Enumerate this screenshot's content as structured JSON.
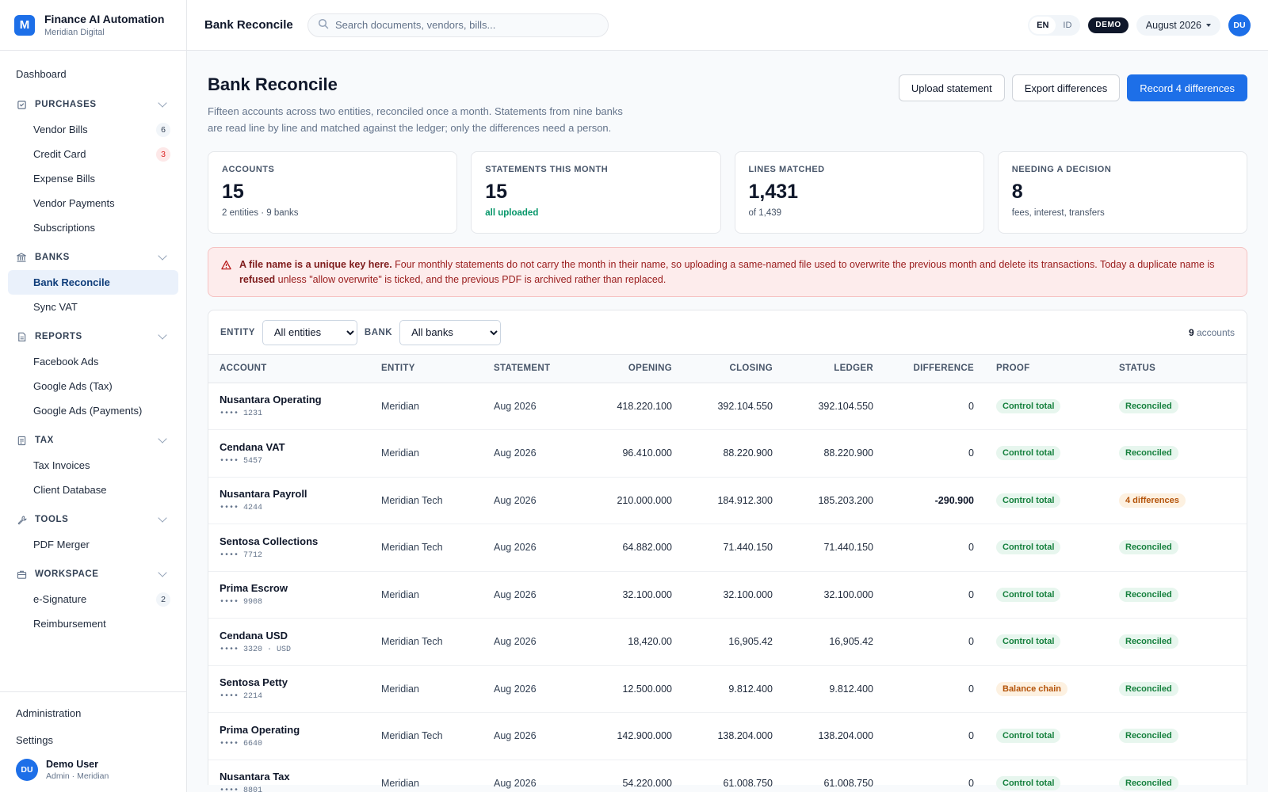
{
  "brand": {
    "title": "Finance AI Automation",
    "subtitle": "Meridian Digital",
    "logo_letter": "M"
  },
  "nav": {
    "dashboard": "Dashboard",
    "sections": [
      {
        "label": "PURCHASES",
        "icon": "cart-icon",
        "items": [
          {
            "label": "Vendor Bills",
            "count": "6",
            "count_color": "gray"
          },
          {
            "label": "Credit Card",
            "count": "3",
            "count_color": "red"
          },
          {
            "label": "Expense Bills"
          },
          {
            "label": "Vendor Payments"
          },
          {
            "label": "Subscriptions"
          }
        ]
      },
      {
        "label": "BANKS",
        "icon": "bank-icon",
        "items": [
          {
            "label": "Bank Reconcile",
            "active": true
          },
          {
            "label": "Sync VAT"
          }
        ]
      },
      {
        "label": "REPORTS",
        "icon": "report-icon",
        "items": [
          {
            "label": "Facebook Ads"
          },
          {
            "label": "Google Ads (Tax)"
          },
          {
            "label": "Google Ads (Payments)"
          }
        ]
      },
      {
        "label": "TAX",
        "icon": "receipt-icon",
        "items": [
          {
            "label": "Tax Invoices"
          },
          {
            "label": "Client Database"
          }
        ]
      },
      {
        "label": "TOOLS",
        "icon": "wrench-icon",
        "items": [
          {
            "label": "PDF Merger"
          }
        ]
      },
      {
        "label": "WORKSPACE",
        "icon": "briefcase-icon",
        "items": [
          {
            "label": "e-Signature",
            "count": "2",
            "count_color": "gray"
          },
          {
            "label": "Reimbursement"
          }
        ]
      }
    ],
    "administration": "Administration",
    "settings": "Settings"
  },
  "user": {
    "initials": "DU",
    "name": "Demo User",
    "role": "Admin · Meridian"
  },
  "topbar": {
    "title": "Bank Reconcile",
    "search_placeholder": "Search documents, vendors, bills...",
    "lang_en": "EN",
    "lang_id": "ID",
    "demo_badge": "DEMO",
    "month": "August 2026",
    "avatar": "DU"
  },
  "page": {
    "title": "Bank Reconcile",
    "description": "Fifteen accounts across two entities, reconciled once a month. Statements from nine banks are read line by line and matched against the ledger; only the differences need a person.",
    "buttons": {
      "upload": "Upload statement",
      "export": "Export differences",
      "record": "Record 4 differences"
    }
  },
  "kpis": [
    {
      "label": "ACCOUNTS",
      "value": "15",
      "sub": "2 entities · 9 banks",
      "sub_style": "muted"
    },
    {
      "label": "STATEMENTS THIS MONTH",
      "value": "15",
      "sub": "all uploaded",
      "sub_style": "green"
    },
    {
      "label": "LINES MATCHED",
      "value": "1,431",
      "sub": "of 1,439",
      "sub_style": "muted"
    },
    {
      "label": "NEEDING A DECISION",
      "value": "8",
      "sub": "fees, interest, transfers",
      "sub_style": "muted"
    }
  ],
  "alert": {
    "lead": "A file name is a unique key here.",
    "text1": " Four monthly statements do not carry the month in their name, so uploading a same-named file used to overwrite the previous month and delete its transactions. Today a duplicate name is ",
    "strong2": "refused",
    "text2": " unless \"allow overwrite\" is ticked, and the previous PDF is archived rather than replaced."
  },
  "filters": {
    "entity_label": "ENTITY",
    "entity_value": "All entities",
    "bank_label": "BANK",
    "bank_value": "All banks",
    "count_number": "9",
    "count_word": " accounts"
  },
  "table": {
    "headers": [
      "ACCOUNT",
      "ENTITY",
      "STATEMENT",
      "OPENING",
      "CLOSING",
      "LEDGER",
      "DIFFERENCE",
      "PROOF",
      "STATUS"
    ],
    "rows": [
      {
        "name": "Nusantara Operating",
        "mask": "•••• 1231",
        "entity": "Meridian",
        "statement": "Aug 2026",
        "opening": "418.220.100",
        "closing": "392.104.550",
        "ledger": "392.104.550",
        "difference": "0",
        "proof": "Control total",
        "proof_style": "green",
        "status": "Reconciled",
        "status_style": "green"
      },
      {
        "name": "Cendana VAT",
        "mask": "•••• 5457",
        "entity": "Meridian",
        "statement": "Aug 2026",
        "opening": "96.410.000",
        "closing": "88.220.900",
        "ledger": "88.220.900",
        "difference": "0",
        "proof": "Control total",
        "proof_style": "green",
        "status": "Reconciled",
        "status_style": "green"
      },
      {
        "name": "Nusantara Payroll",
        "mask": "•••• 4244",
        "entity": "Meridian Tech",
        "statement": "Aug 2026",
        "opening": "210.000.000",
        "closing": "184.912.300",
        "ledger": "185.203.200",
        "difference": "-290.900",
        "difference_bold": true,
        "proof": "Control total",
        "proof_style": "green",
        "status": "4 differences",
        "status_style": "amber"
      },
      {
        "name": "Sentosa Collections",
        "mask": "•••• 7712",
        "entity": "Meridian Tech",
        "statement": "Aug 2026",
        "opening": "64.882.000",
        "closing": "71.440.150",
        "ledger": "71.440.150",
        "difference": "0",
        "proof": "Control total",
        "proof_style": "green",
        "status": "Reconciled",
        "status_style": "green"
      },
      {
        "name": "Prima Escrow",
        "mask": "•••• 9908",
        "entity": "Meridian",
        "statement": "Aug 2026",
        "opening": "32.100.000",
        "closing": "32.100.000",
        "ledger": "32.100.000",
        "difference": "0",
        "proof": "Control total",
        "proof_style": "green",
        "status": "Reconciled",
        "status_style": "green"
      },
      {
        "name": "Cendana USD",
        "mask": "•••• 3320 · USD",
        "entity": "Meridian Tech",
        "statement": "Aug 2026",
        "opening": "18,420.00",
        "closing": "16,905.42",
        "ledger": "16,905.42",
        "difference": "0",
        "proof": "Control total",
        "proof_style": "green",
        "status": "Reconciled",
        "status_style": "green"
      },
      {
        "name": "Sentosa Petty",
        "mask": "•••• 2214",
        "entity": "Meridian",
        "statement": "Aug 2026",
        "opening": "12.500.000",
        "closing": "9.812.400",
        "ledger": "9.812.400",
        "difference": "0",
        "proof": "Balance chain",
        "proof_style": "amber",
        "status": "Reconciled",
        "status_style": "green"
      },
      {
        "name": "Prima Operating",
        "mask": "•••• 6640",
        "entity": "Meridian Tech",
        "statement": "Aug 2026",
        "opening": "142.900.000",
        "closing": "138.204.000",
        "ledger": "138.204.000",
        "difference": "0",
        "proof": "Control total",
        "proof_style": "green",
        "status": "Reconciled",
        "status_style": "green"
      },
      {
        "name": "Nusantara Tax",
        "mask": "•••• 8801",
        "entity": "Meridian",
        "statement": "Aug 2026",
        "opening": "54.220.000",
        "closing": "61.008.750",
        "ledger": "61.008.750",
        "difference": "0",
        "proof": "Control total",
        "proof_style": "green",
        "status": "Reconciled",
        "status_style": "green"
      }
    ]
  },
  "colors": {
    "accent": "#1d6fe8",
    "green": "#15803d",
    "amber": "#b45309",
    "alert_bg": "#fdecec",
    "alert_text": "#991b1b"
  }
}
